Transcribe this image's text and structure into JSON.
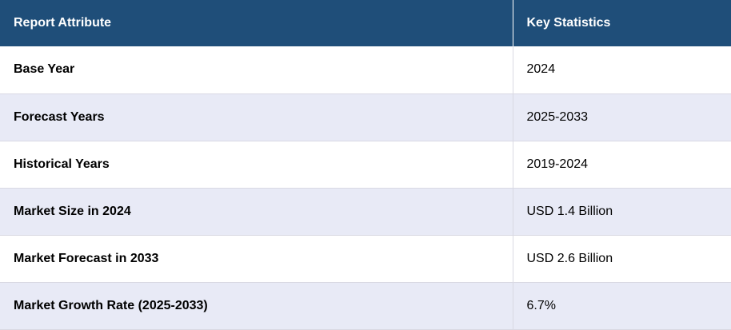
{
  "header": {
    "col1": "Report Attribute",
    "col2": "Key Statistics"
  },
  "rows": [
    {
      "attribute": "Base Year",
      "value": "2024"
    },
    {
      "attribute": "Forecast Years",
      "value": "2025-2033"
    },
    {
      "attribute": "Historical Years",
      "value": "2019-2024"
    },
    {
      "attribute": "Market Size in 2024",
      "value": "USD 1.4 Billion"
    },
    {
      "attribute": "Market Forecast in 2033",
      "value": "USD 2.6 Billion"
    },
    {
      "attribute": "Market Growth Rate (2025-2033)",
      "value": "6.7%"
    }
  ],
  "colors": {
    "header_bg": "#1f4e79",
    "row_alt_bg": "#e8eaf6"
  }
}
